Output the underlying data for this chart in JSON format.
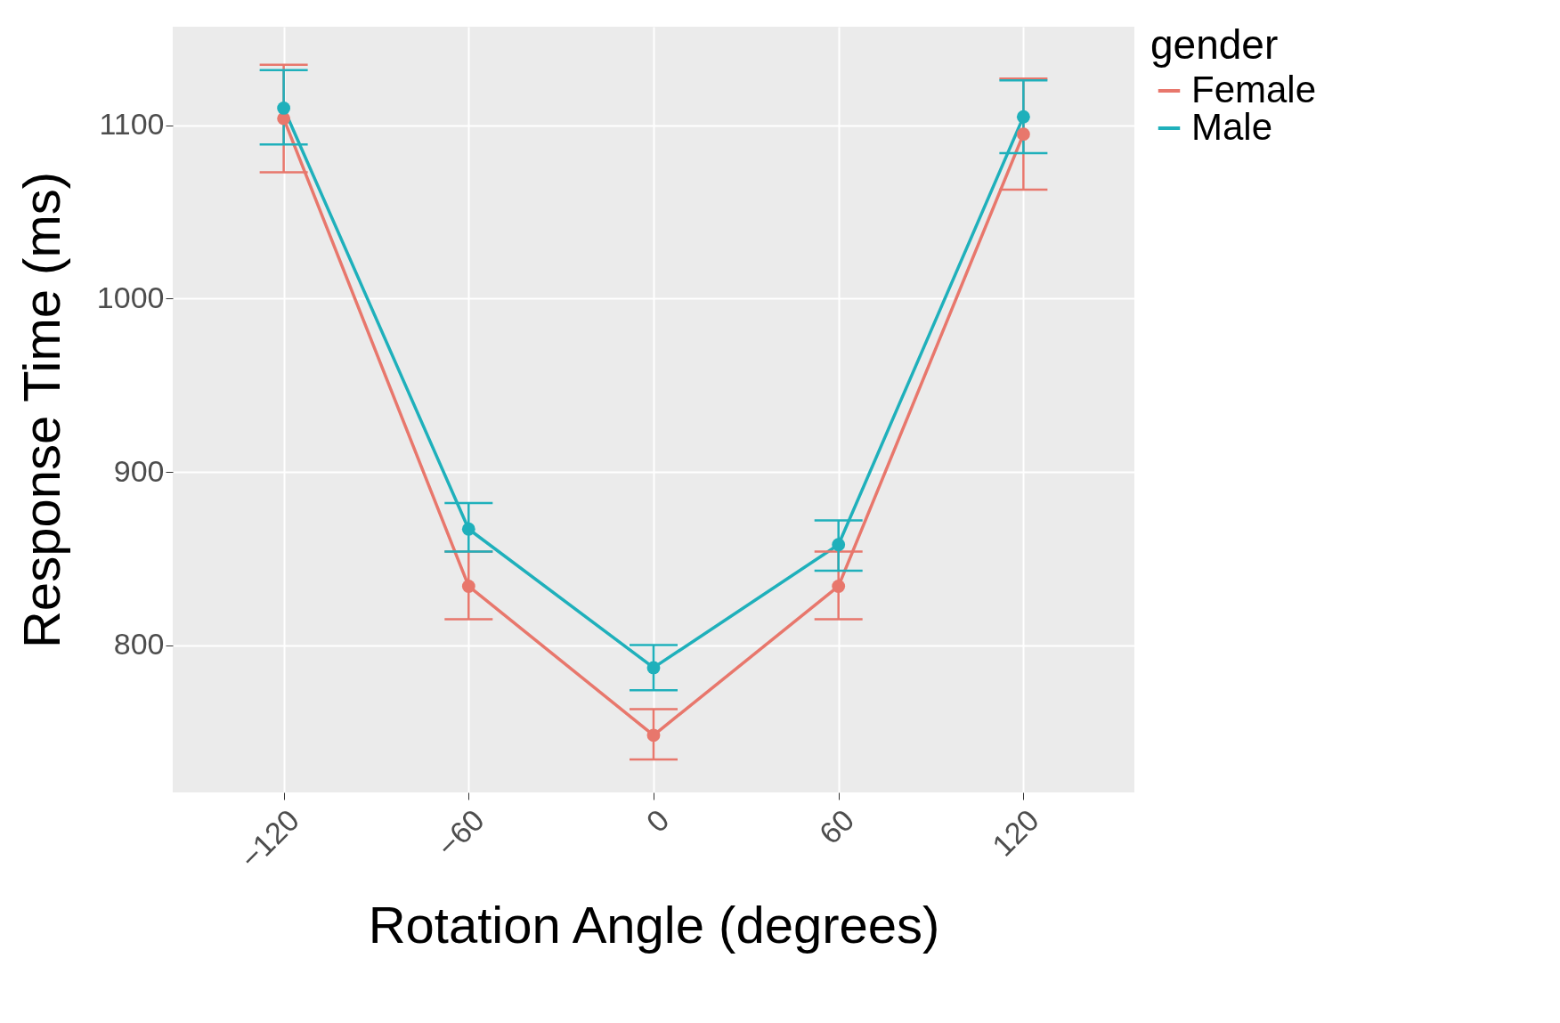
{
  "chart_data": {
    "type": "line",
    "xlabel": "Rotation Angle (degrees)",
    "ylabel": "Response Time (ms)",
    "legend_title": "gender",
    "x": [
      -120,
      -60,
      0,
      60,
      120
    ],
    "xlim": [
      -156,
      156
    ],
    "xticks": [
      -120,
      -60,
      0,
      60,
      120
    ],
    "ylim": [
      715,
      1157
    ],
    "yticks": [
      800,
      900,
      1000,
      1100
    ],
    "series": [
      {
        "name": "Female",
        "color": "#e8776c",
        "values": [
          1104,
          834,
          748,
          834,
          1095
        ],
        "errors": [
          [
            1073,
            1135
          ],
          [
            815,
            854
          ],
          [
            734,
            763
          ],
          [
            815,
            854
          ],
          [
            1063,
            1127
          ]
        ]
      },
      {
        "name": "Male",
        "color": "#1fb0bb",
        "values": [
          1110,
          867,
          787,
          858,
          1105
        ],
        "errors": [
          [
            1089,
            1132
          ],
          [
            854,
            882
          ],
          [
            774,
            800
          ],
          [
            843,
            872
          ],
          [
            1084,
            1126
          ]
        ]
      }
    ],
    "marker": "circle",
    "grid": true,
    "legend": "right"
  }
}
